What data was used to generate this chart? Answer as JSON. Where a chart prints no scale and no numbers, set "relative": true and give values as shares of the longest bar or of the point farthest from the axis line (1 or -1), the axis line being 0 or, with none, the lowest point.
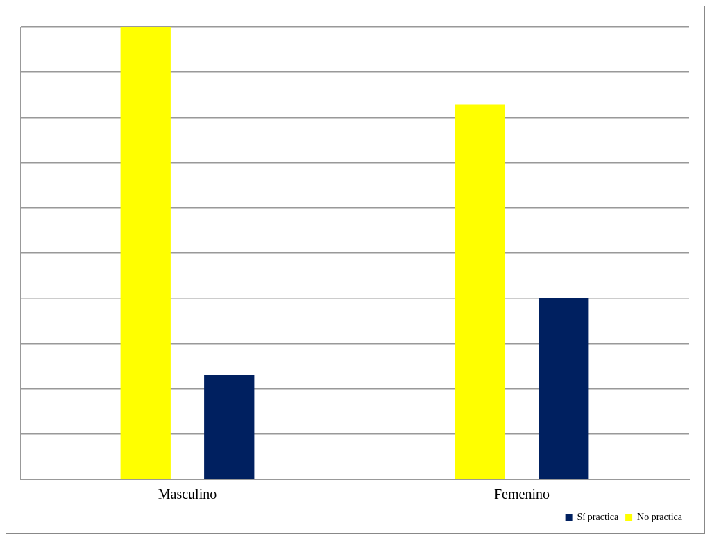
{
  "chart_data": {
    "type": "bar",
    "relative": true,
    "categories": [
      "Masculino",
      "Femenino"
    ],
    "series": [
      {
        "name": "No practica",
        "color": "#ffff00",
        "values": [
          1,
          0.829
        ]
      },
      {
        "name": "Sí practica",
        "color": "#002060",
        "values": [
          0.231,
          0.402
        ]
      }
    ],
    "grid": true,
    "legend": "bottom right"
  }
}
